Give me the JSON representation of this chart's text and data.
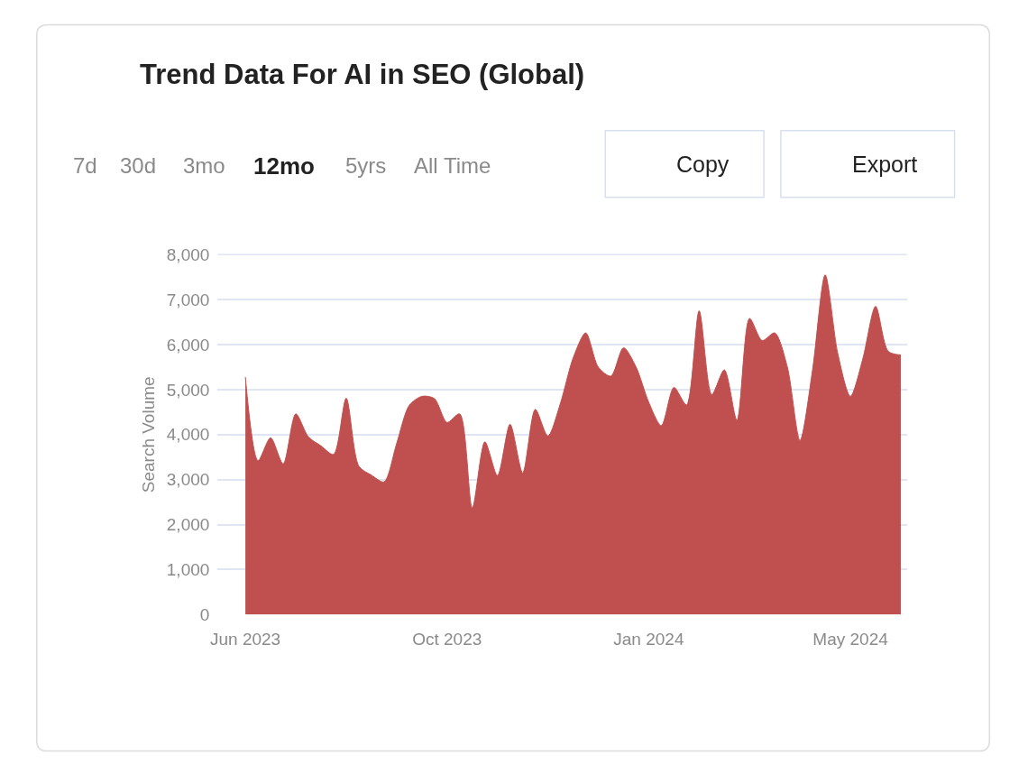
{
  "chart_data": {
    "type": "area",
    "title": "Trend Data For AI in SEO (Global)",
    "ylabel": "Search Volume",
    "categories": [
      "Jun 2023",
      null,
      null,
      null,
      null,
      null,
      null,
      null,
      null,
      null,
      null,
      null,
      null,
      null,
      null,
      null,
      "Oct 2023",
      null,
      null,
      null,
      null,
      null,
      null,
      null,
      null,
      null,
      null,
      null,
      null,
      null,
      null,
      null,
      "Jan 2024",
      null,
      null,
      null,
      null,
      null,
      null,
      null,
      null,
      null,
      null,
      null,
      null,
      null,
      null,
      null,
      "May 2024",
      null,
      null,
      null,
      null
    ],
    "series": [
      {
        "color": "#c0504f",
        "values": [
          5280,
          3420,
          3930,
          3350,
          4460,
          3950,
          3750,
          3560,
          4810,
          3300,
          3100,
          2950,
          3800,
          4650,
          4850,
          4800,
          4270,
          4460,
          2370,
          3840,
          3090,
          4230,
          3150,
          4560,
          3970,
          4700,
          5700,
          6260,
          5500,
          5300,
          5930,
          5500,
          4720,
          4200,
          5050,
          4660,
          6750,
          4890,
          5440,
          4320,
          6580,
          6090,
          6260,
          5500,
          3870,
          5440,
          7550,
          5800,
          4850,
          5700,
          6850,
          5850,
          5770
        ]
      }
    ],
    "ylim": [
      0,
      8000
    ],
    "yticks": [
      {
        "value": 0,
        "label": "0"
      },
      {
        "value": 1000,
        "label": "1,000"
      },
      {
        "value": 2000,
        "label": "2,000"
      },
      {
        "value": 3000,
        "label": "3,000"
      },
      {
        "value": 4000,
        "label": "4,000"
      },
      {
        "value": 5000,
        "label": "5,000"
      },
      {
        "value": 6000,
        "label": "6,000"
      },
      {
        "value": 7000,
        "label": "7,000"
      },
      {
        "value": 8000,
        "label": "8,000"
      }
    ],
    "grid": "y",
    "marker": "none",
    "annotations": [
      "7d",
      "30d",
      "3mo",
      "12mo",
      "5yrs",
      "All Time",
      "Copy",
      "Export"
    ]
  }
}
